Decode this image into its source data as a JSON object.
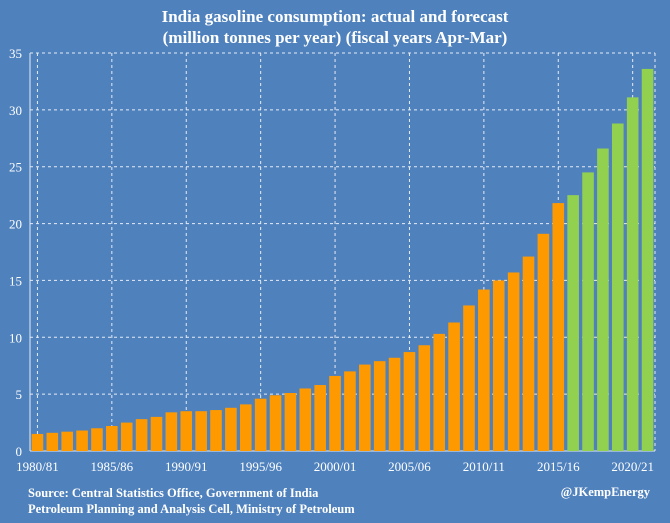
{
  "chart_data": {
    "type": "bar",
    "title": "India gasoline consumption: actual and forecast",
    "subtitle": "(million tonnes per year) (fiscal years Apr-Mar)",
    "xlabel": "",
    "ylabel": "",
    "ylim": [
      0,
      35
    ],
    "yticks": [
      0,
      5,
      10,
      15,
      20,
      25,
      30,
      35
    ],
    "grid": true,
    "categories": [
      "1980/81",
      "1981/82",
      "1982/83",
      "1983/84",
      "1984/85",
      "1985/86",
      "1986/87",
      "1987/88",
      "1988/89",
      "1989/90",
      "1990/91",
      "1991/92",
      "1992/93",
      "1993/94",
      "1994/95",
      "1995/96",
      "1996/97",
      "1997/98",
      "1998/99",
      "1999/00",
      "2000/01",
      "2001/02",
      "2002/03",
      "2003/04",
      "2004/05",
      "2005/06",
      "2006/07",
      "2007/08",
      "2008/09",
      "2009/10",
      "2010/11",
      "2011/12",
      "2012/13",
      "2013/14",
      "2014/15",
      "2015/16",
      "2016/17",
      "2017/18",
      "2018/19",
      "2019/20",
      "2020/21",
      "2021/22"
    ],
    "xtick_labels": [
      "1980/81",
      "1985/86",
      "1990/91",
      "1995/96",
      "2000/01",
      "2005/06",
      "2010/11",
      "2015/16",
      "2020/21"
    ],
    "series": [
      {
        "name": "Actual",
        "color": "#ff9900",
        "values": [
          1.5,
          1.6,
          1.7,
          1.8,
          2.0,
          2.2,
          2.5,
          2.8,
          3.0,
          3.4,
          3.5,
          3.5,
          3.6,
          3.8,
          4.1,
          4.6,
          4.9,
          5.1,
          5.5,
          5.8,
          6.6,
          7.0,
          7.6,
          7.9,
          8.2,
          8.7,
          9.3,
          10.3,
          11.3,
          12.8,
          14.2,
          15.0,
          15.7,
          17.1,
          19.1,
          21.8,
          null,
          null,
          null,
          null,
          null,
          null
        ]
      },
      {
        "name": "Forecast",
        "color": "#92d050",
        "values": [
          null,
          null,
          null,
          null,
          null,
          null,
          null,
          null,
          null,
          null,
          null,
          null,
          null,
          null,
          null,
          null,
          null,
          null,
          null,
          null,
          null,
          null,
          null,
          null,
          null,
          null,
          null,
          null,
          null,
          null,
          null,
          null,
          null,
          null,
          null,
          null,
          22.5,
          24.5,
          26.6,
          28.8,
          31.1,
          33.6
        ]
      }
    ]
  },
  "source": {
    "line1": "Source: Central Statistics Office, Government of India",
    "line2": "Petroleum Planning and Analysis Cell, Ministry of Petroleum"
  },
  "credit": "@JKempEnergy",
  "colors": {
    "background": "#4f81bd",
    "grid": "#e6ecf5",
    "text": "#ffffff"
  }
}
